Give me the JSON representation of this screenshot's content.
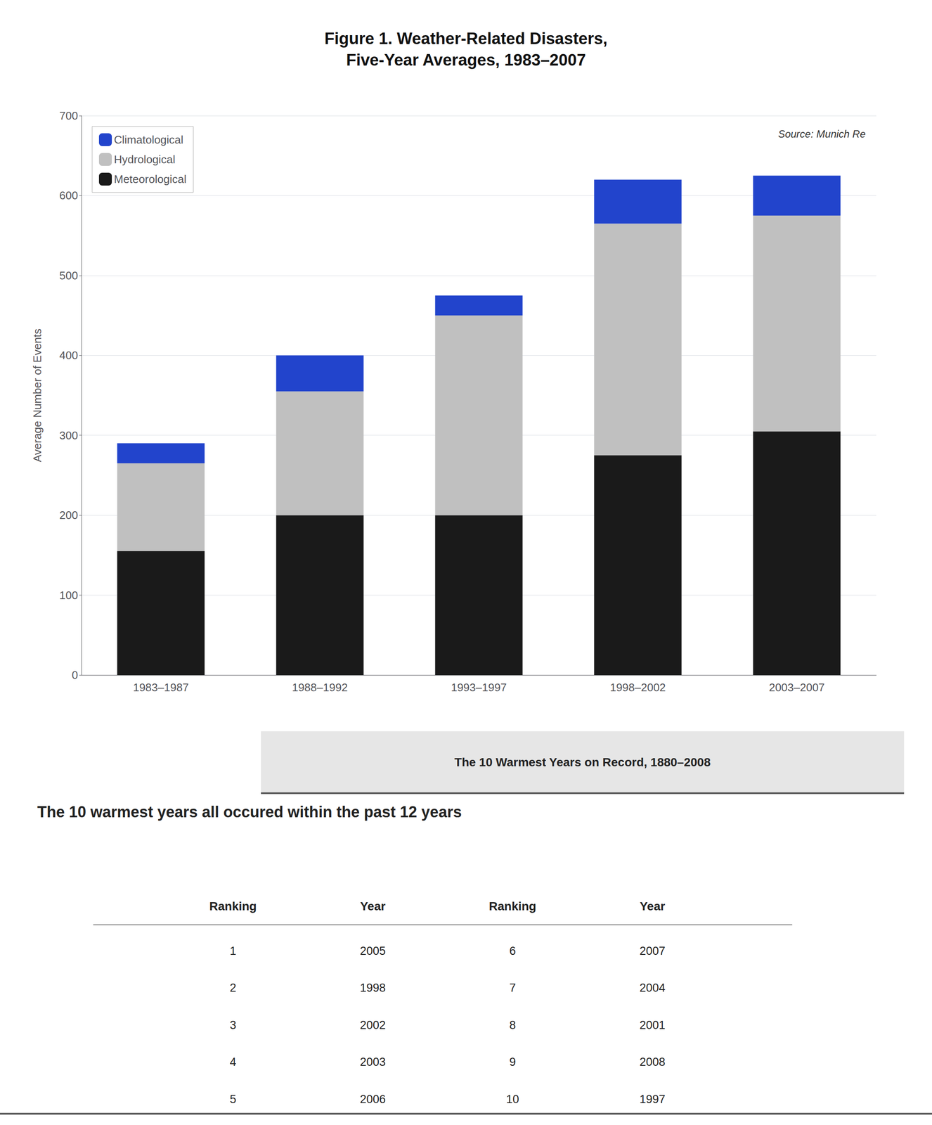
{
  "chart_data": [
    {
      "type": "bar",
      "title": "Figure 1. Weather-Related Disasters,\nFive-Year Averages, 1983–2007",
      "categories": [
        "1983–1987",
        "1988–1992",
        "1993–1997",
        "1998–2002",
        "2003–2007"
      ],
      "series": [
        {
          "name": "Meteorological",
          "color": "#1A1A1A",
          "values": [
            155,
            200,
            200,
            275,
            305
          ]
        },
        {
          "name": "Hydrological",
          "color": "#C0C0C0",
          "values": [
            110,
            155,
            250,
            290,
            270
          ]
        },
        {
          "name": "Climatological",
          "color": "#2244CC",
          "values": [
            25,
            45,
            25,
            55,
            50
          ]
        }
      ],
      "stacked": true,
      "ylabel": "Average Number of Events",
      "ylim": [
        0,
        700
      ],
      "yticks": [
        0,
        100,
        200,
        300,
        400,
        500,
        600,
        700
      ],
      "grid": true,
      "legend": "upper left",
      "annotations": [
        "Source: Munich Re"
      ]
    },
    {
      "type": "table",
      "title": "The 10 Warmest Years on Record, 1880–2008",
      "subtitle": "The 10 warmest years all occured within the past 12 years",
      "columns": [
        "Ranking",
        "Year",
        "Ranking",
        "Year"
      ],
      "rows": [
        [
          1,
          2005,
          6,
          2007
        ],
        [
          2,
          1998,
          7,
          2004
        ],
        [
          3,
          2002,
          8,
          2001
        ],
        [
          4,
          2003,
          9,
          2008
        ],
        [
          5,
          2006,
          10,
          1997
        ]
      ]
    }
  ]
}
